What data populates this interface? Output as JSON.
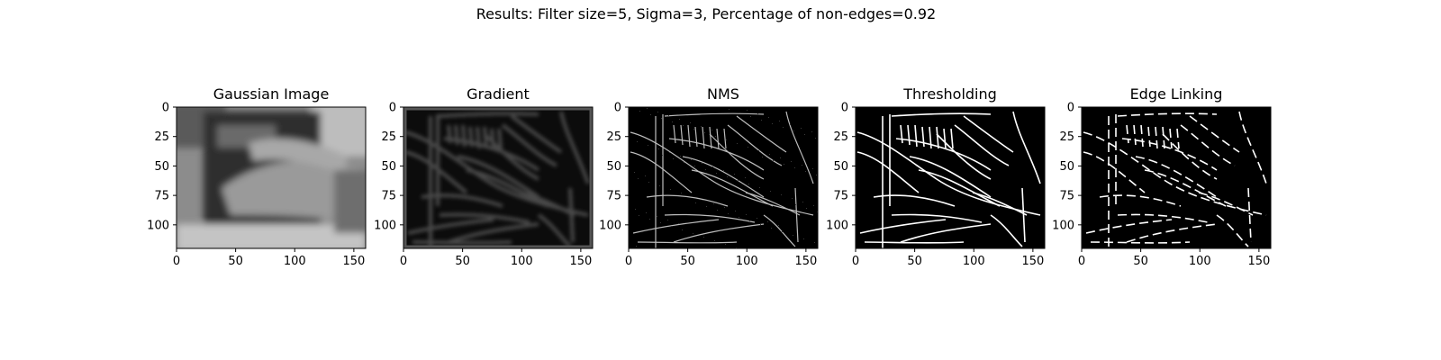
{
  "figure": {
    "suptitle": "Results: Filter size=5, Sigma=3, Percentage of non-edges=0.92"
  },
  "colors": {
    "background": "#ffffff",
    "axes": "#000000",
    "image_black": "#000000",
    "edge_white": "#ffffff"
  },
  "chart_data": [
    {
      "type": "heatmap",
      "title": "Gaussian Image",
      "colormap": "gray",
      "xlim": [
        0,
        160
      ],
      "ylim": [
        120,
        0
      ],
      "xticks": [
        0,
        50,
        100,
        150
      ],
      "yticks": [
        0,
        25,
        50,
        75,
        100
      ],
      "xtick_labels": [
        "0",
        "50",
        "100",
        "150"
      ],
      "ytick_labels": [
        "0",
        "25",
        "50",
        "75",
        "100"
      ],
      "content": "blurred grayscale photo of a hand over a keyboard/book"
    },
    {
      "type": "heatmap",
      "title": "Gradient",
      "colormap": "gray",
      "xlim": [
        0,
        160
      ],
      "ylim": [
        120,
        0
      ],
      "xticks": [
        0,
        50,
        100,
        150
      ],
      "yticks": [
        0,
        25,
        50,
        75,
        100
      ],
      "xtick_labels": [
        "0",
        "50",
        "100",
        "150"
      ],
      "ytick_labels": [
        "0",
        "25",
        "50",
        "75",
        "100"
      ],
      "content": "dark gradient magnitude with soft edges"
    },
    {
      "type": "heatmap",
      "title": "NMS",
      "colormap": "gray",
      "xlim": [
        0,
        160
      ],
      "ylim": [
        120,
        0
      ],
      "xticks": [
        0,
        50,
        100,
        150
      ],
      "yticks": [
        0,
        25,
        50,
        75,
        100
      ],
      "xtick_labels": [
        "0",
        "50",
        "100",
        "150"
      ],
      "ytick_labels": [
        "0",
        "25",
        "50",
        "75",
        "100"
      ],
      "content": "thin gray edge lines on black"
    },
    {
      "type": "heatmap",
      "title": "Thresholding",
      "colormap": "gray",
      "xlim": [
        0,
        160
      ],
      "ylim": [
        120,
        0
      ],
      "xticks": [
        0,
        50,
        100,
        150
      ],
      "yticks": [
        0,
        25,
        50,
        75,
        100
      ],
      "xtick_labels": [
        "0",
        "50",
        "100",
        "150"
      ],
      "ytick_labels": [
        "0",
        "25",
        "50",
        "75",
        "100"
      ],
      "content": "white thresholded edges on black"
    },
    {
      "type": "heatmap",
      "title": "Edge Linking",
      "colormap": "gray",
      "xlim": [
        0,
        160
      ],
      "ylim": [
        120,
        0
      ],
      "xticks": [
        0,
        50,
        100,
        150
      ],
      "yticks": [
        0,
        25,
        50,
        75,
        100
      ],
      "xtick_labels": [
        "0",
        "50",
        "100",
        "150"
      ],
      "ytick_labels": [
        "0",
        "25",
        "50",
        "75",
        "100"
      ],
      "content": "sparser white linked edges on black"
    }
  ]
}
